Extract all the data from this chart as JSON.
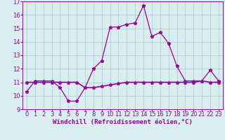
{
  "xlabel": "Windchill (Refroidissement éolien,°C)",
  "x": [
    0,
    1,
    2,
    3,
    4,
    5,
    6,
    7,
    8,
    9,
    10,
    11,
    12,
    13,
    14,
    15,
    16,
    17,
    18,
    19,
    20,
    21,
    22,
    23
  ],
  "y_windchill": [
    10.3,
    11.1,
    11.1,
    11.1,
    10.6,
    9.6,
    9.6,
    10.6,
    12.0,
    12.6,
    15.1,
    15.1,
    15.3,
    15.4,
    16.7,
    14.4,
    14.7,
    13.9,
    12.2,
    11.1,
    11.1,
    11.1,
    11.9,
    11.1
  ],
  "y_flat": [
    11.0,
    11.0,
    11.0,
    11.0,
    11.0,
    11.0,
    11.0,
    10.6,
    10.6,
    10.7,
    10.8,
    10.9,
    11.0,
    11.0,
    11.0,
    11.0,
    11.0,
    11.0,
    11.0,
    11.0,
    11.0,
    11.1,
    11.0,
    11.0
  ],
  "line_color": "#990099",
  "bg_color": "#d8eef0",
  "grid_color": "#b0c8cc",
  "ylim": [
    9,
    17
  ],
  "xlim": [
    -0.5,
    23.5
  ],
  "yticks": [
    9,
    10,
    11,
    12,
    13,
    14,
    15,
    16,
    17
  ],
  "xticks": [
    0,
    1,
    2,
    3,
    4,
    5,
    6,
    7,
    8,
    9,
    10,
    11,
    12,
    13,
    14,
    15,
    16,
    17,
    18,
    19,
    20,
    21,
    22,
    23
  ],
  "tick_fontsize": 6,
  "xlabel_fontsize": 6.5
}
